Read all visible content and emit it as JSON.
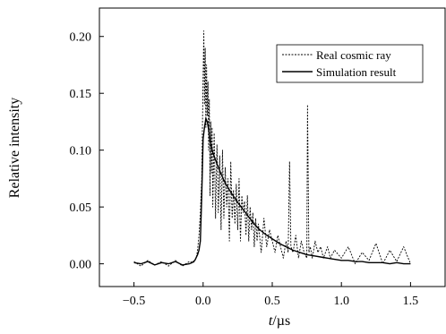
{
  "chart_data": {
    "type": "line",
    "xlabel_italic": "t",
    "xlabel_unit": "/µs",
    "ylabel": "Relative intensity",
    "xlim": [
      -0.75,
      1.75
    ],
    "ylim": [
      -0.02,
      0.225
    ],
    "x_ticks": [
      -0.5,
      0.0,
      0.5,
      1.0,
      1.5
    ],
    "x_tick_labels": [
      "−0.5",
      "0.0",
      "0.5",
      "1.0",
      "1.5"
    ],
    "y_ticks": [
      0.0,
      0.05,
      0.1,
      0.15,
      0.2
    ],
    "y_tick_labels": [
      "0.00",
      "0.05",
      "0.10",
      "0.15",
      "0.20"
    ],
    "legend_position": "top-right",
    "colors": {
      "line": "#000000",
      "background": "#ffffff"
    },
    "series": [
      {
        "name": "Real cosmic ray",
        "style": "dotted",
        "x": [
          -0.5,
          -0.45,
          -0.4,
          -0.35,
          -0.3,
          -0.25,
          -0.2,
          -0.15,
          -0.1,
          -0.07,
          -0.05,
          -0.04,
          -0.03,
          -0.02,
          -0.01,
          -0.005,
          0.0,
          0.005,
          0.01,
          0.015,
          0.02,
          0.025,
          0.03,
          0.035,
          0.04,
          0.045,
          0.05,
          0.055,
          0.06,
          0.065,
          0.07,
          0.08,
          0.09,
          0.1,
          0.11,
          0.12,
          0.13,
          0.14,
          0.15,
          0.16,
          0.17,
          0.18,
          0.19,
          0.2,
          0.21,
          0.22,
          0.23,
          0.24,
          0.25,
          0.26,
          0.27,
          0.28,
          0.29,
          0.3,
          0.31,
          0.32,
          0.33,
          0.34,
          0.35,
          0.36,
          0.37,
          0.38,
          0.39,
          0.4,
          0.42,
          0.44,
          0.46,
          0.48,
          0.5,
          0.52,
          0.54,
          0.56,
          0.58,
          0.6,
          0.615,
          0.625,
          0.635,
          0.65,
          0.67,
          0.69,
          0.71,
          0.73,
          0.75,
          0.755,
          0.765,
          0.775,
          0.79,
          0.81,
          0.83,
          0.85,
          0.87,
          0.9,
          0.92,
          0.95,
          1.0,
          1.05,
          1.1,
          1.15,
          1.2,
          1.25,
          1.3,
          1.35,
          1.4,
          1.45,
          1.5
        ],
        "values": [
          0.002,
          -0.002,
          0.003,
          -0.001,
          0.002,
          -0.002,
          0.003,
          -0.002,
          0.002,
          0.001,
          0.005,
          0.012,
          0.025,
          0.045,
          0.075,
          0.12,
          0.165,
          0.205,
          0.14,
          0.19,
          0.12,
          0.175,
          0.13,
          0.16,
          0.1,
          0.145,
          0.06,
          0.125,
          0.08,
          0.12,
          0.05,
          0.115,
          0.04,
          0.105,
          0.045,
          0.095,
          0.03,
          0.1,
          0.04,
          0.085,
          0.05,
          0.075,
          0.02,
          0.09,
          0.04,
          0.065,
          0.035,
          0.07,
          0.03,
          0.075,
          0.02,
          0.06,
          0.045,
          0.055,
          0.025,
          0.06,
          0.02,
          0.05,
          0.03,
          0.045,
          0.015,
          0.04,
          0.02,
          0.035,
          0.01,
          0.04,
          0.015,
          0.03,
          0.02,
          0.01,
          0.025,
          0.015,
          0.005,
          0.02,
          0.01,
          0.09,
          0.015,
          0.01,
          0.025,
          0.005,
          0.02,
          0.01,
          0.005,
          0.14,
          0.01,
          0.015,
          0.005,
          0.02,
          0.01,
          0.015,
          0.005,
          0.015,
          0.005,
          0.012,
          0.005,
          0.015,
          0.0,
          0.01,
          0.003,
          0.018,
          0.0,
          0.012,
          0.002,
          0.015,
          0.0
        ]
      },
      {
        "name": "Simulation result",
        "style": "solid",
        "x": [
          -0.5,
          -0.45,
          -0.4,
          -0.35,
          -0.3,
          -0.25,
          -0.2,
          -0.15,
          -0.1,
          -0.08,
          -0.06,
          -0.04,
          -0.03,
          -0.02,
          -0.01,
          0.0,
          0.01,
          0.02,
          0.03,
          0.04,
          0.05,
          0.07,
          0.1,
          0.13,
          0.16,
          0.2,
          0.25,
          0.3,
          0.35,
          0.4,
          0.45,
          0.5,
          0.55,
          0.6,
          0.65,
          0.7,
          0.75,
          0.8,
          0.85,
          0.9,
          0.95,
          1.0,
          1.05,
          1.1,
          1.15,
          1.2,
          1.25,
          1.3,
          1.35,
          1.4,
          1.45,
          1.5
        ],
        "values": [
          0.001,
          0.0,
          0.002,
          -0.001,
          0.001,
          0.0,
          0.002,
          -0.001,
          0.0,
          0.001,
          0.003,
          0.008,
          0.012,
          0.02,
          0.06,
          0.11,
          0.12,
          0.128,
          0.125,
          0.118,
          0.108,
          0.098,
          0.088,
          0.079,
          0.071,
          0.063,
          0.054,
          0.046,
          0.038,
          0.031,
          0.026,
          0.022,
          0.018,
          0.015,
          0.012,
          0.01,
          0.008,
          0.007,
          0.006,
          0.005,
          0.004,
          0.003,
          0.003,
          0.002,
          0.002,
          0.001,
          0.001,
          0.001,
          0.0,
          0.001,
          0.0,
          0.0
        ]
      }
    ]
  }
}
